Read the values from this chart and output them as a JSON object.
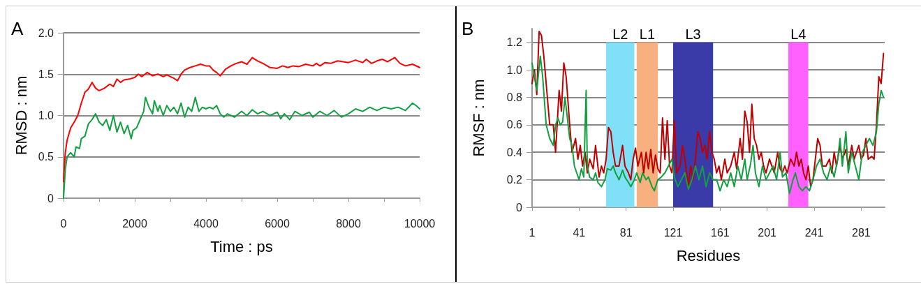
{
  "chart_data": [
    {
      "type": "line",
      "title": "A",
      "xlabel": "Time : ps",
      "ylabel": "RMSD : nm",
      "xlim": [
        0,
        10000
      ],
      "xticks": [
        0,
        {
          "value": 1000,
          "label": null
        },
        2000,
        {
          "value": 3000,
          "label": null
        },
        4000,
        {
          "value": 5000,
          "label": null
        },
        6000,
        {
          "value": 7000,
          "label": null
        },
        8000,
        {
          "value": 9000,
          "label": null
        },
        10000
      ],
      "ylim": [
        0,
        2
      ],
      "yticks": [
        0,
        {
          "value": 0.5,
          "label": "0.5"
        },
        {
          "value": 1,
          "label": "1.0"
        },
        {
          "value": 1.5,
          "label": "1.5"
        },
        {
          "value": 2,
          "label": "2.0"
        }
      ],
      "grid": "y",
      "marker": "none",
      "line_style": "solid",
      "series": [
        {
          "color": "#ff0000",
          "x": [
            0,
            50,
            100,
            200,
            300,
            400,
            500,
            600,
            700,
            800,
            900,
            1000,
            1150,
            1300,
            1400,
            1500,
            1600,
            1700,
            1850,
            2000,
            2100,
            2200,
            2350,
            2500,
            2650,
            2800,
            2900,
            3000,
            3100,
            3200,
            3300,
            3400,
            3550,
            3700,
            3850,
            4000,
            4100,
            4200,
            4300,
            4400,
            4550,
            4700,
            4850,
            5000,
            5150,
            5300,
            5450,
            5600,
            5800,
            6000,
            6150,
            6300,
            6450,
            6600,
            6800,
            7000,
            7100,
            7200,
            7350,
            7500,
            7700,
            8000,
            8200,
            8400,
            8500,
            8650,
            8800,
            8950,
            9100,
            9300,
            9450,
            9600,
            9800,
            10000
          ],
          "values": [
            0.2,
            0.55,
            0.7,
            0.85,
            0.92,
            1.0,
            1.15,
            1.28,
            1.32,
            1.4,
            1.33,
            1.3,
            1.33,
            1.38,
            1.35,
            1.44,
            1.4,
            1.43,
            1.44,
            1.46,
            1.5,
            1.47,
            1.52,
            1.48,
            1.5,
            1.47,
            1.49,
            1.47,
            1.45,
            1.42,
            1.5,
            1.55,
            1.58,
            1.6,
            1.62,
            1.6,
            1.6,
            1.55,
            1.52,
            1.48,
            1.56,
            1.6,
            1.63,
            1.65,
            1.62,
            1.7,
            1.66,
            1.63,
            1.58,
            1.57,
            1.6,
            1.58,
            1.6,
            1.59,
            1.62,
            1.6,
            1.63,
            1.6,
            1.64,
            1.63,
            1.66,
            1.64,
            1.67,
            1.64,
            1.68,
            1.63,
            1.66,
            1.68,
            1.65,
            1.7,
            1.63,
            1.6,
            1.62,
            1.58
          ]
        },
        {
          "color": "#10a040",
          "x": [
            0,
            50,
            100,
            200,
            300,
            350,
            450,
            500,
            600,
            700,
            800,
            900,
            1000,
            1100,
            1200,
            1300,
            1400,
            1500,
            1600,
            1700,
            1800,
            1900,
            1950,
            2050,
            2150,
            2250,
            2300,
            2400,
            2500,
            2550,
            2650,
            2700,
            2800,
            2900,
            3000,
            3100,
            3200,
            3300,
            3400,
            3500,
            3600,
            3700,
            3800,
            3900,
            4000,
            4100,
            4200,
            4300,
            4400,
            4500,
            4600,
            4800,
            5000,
            5150,
            5300,
            5450,
            5600,
            5800,
            6000,
            6100,
            6200,
            6350,
            6500,
            6700,
            6900,
            7000,
            7200,
            7400,
            7600,
            7800,
            8000,
            8200,
            8400,
            8600,
            8800,
            9000,
            9200,
            9400,
            9600,
            9800,
            9900,
            10000
          ],
          "values": [
            0,
            0.35,
            0.5,
            0.55,
            0.5,
            0.62,
            0.6,
            0.72,
            0.75,
            0.9,
            0.95,
            1.02,
            0.92,
            0.88,
            0.95,
            0.82,
            1.0,
            0.8,
            0.92,
            0.78,
            0.88,
            0.72,
            0.82,
            0.85,
            0.95,
            1.05,
            1.22,
            1.1,
            1.02,
            1.18,
            1.05,
            1.12,
            1.0,
            1.12,
            1.05,
            1.1,
            1.02,
            1.15,
            0.98,
            1.1,
            1.05,
            1.22,
            1.05,
            1.1,
            1.08,
            1.1,
            1.08,
            1.12,
            1.02,
            0.98,
            1.02,
            0.98,
            1.05,
            1.0,
            1.07,
            1.02,
            1.05,
            1.0,
            1.04,
            0.96,
            1.02,
            0.95,
            1.05,
            1.0,
            1.04,
            0.98,
            1.05,
            1.0,
            1.06,
            0.98,
            1.02,
            1.08,
            1.05,
            1.1,
            1.06,
            1.1,
            1.08,
            1.1,
            1.06,
            1.15,
            1.12,
            1.08
          ]
        }
      ]
    },
    {
      "type": "line",
      "title": "B",
      "xlabel": "Residues",
      "ylabel": "RMSF : nm",
      "xlim": [
        1,
        301
      ],
      "xticks": [
        1,
        41,
        81,
        121,
        161,
        201,
        241,
        281
      ],
      "ylim": [
        0,
        1.3
      ],
      "yticks": [
        0,
        0.2,
        0.4,
        0.6,
        0.8,
        {
          "value": 1,
          "label": "1.0"
        },
        1.2
      ],
      "grid": "y",
      "marker": "none",
      "line_style": "solid",
      "bands": [
        {
          "axis": "x",
          "from": 64,
          "to": 88,
          "label": "L2",
          "color": "#80e0f8"
        },
        {
          "axis": "x",
          "from": 90,
          "to": 108,
          "label": "L1",
          "color": "#f8b080"
        },
        {
          "axis": "x",
          "from": 121,
          "to": 155,
          "label": "L3",
          "color": "#3a3aa8"
        },
        {
          "axis": "x",
          "from": 219,
          "to": 236,
          "label": "L4",
          "color": "#ff60ff"
        }
      ],
      "series": [
        {
          "color": "#c00000",
          "x": [
            1,
            3,
            5,
            7,
            9,
            11,
            14,
            16,
            19,
            21,
            24,
            26,
            28,
            30,
            33,
            35,
            38,
            40,
            42,
            44,
            46,
            48,
            50,
            53,
            55,
            58,
            60,
            62,
            64,
            66,
            68,
            70,
            72,
            75,
            78,
            80,
            83,
            85,
            87,
            89,
            91,
            94,
            96,
            98,
            100,
            102,
            104,
            106,
            108,
            110,
            112,
            114,
            116,
            118,
            120,
            122,
            124,
            127,
            129,
            131,
            134,
            136,
            138,
            140,
            142,
            144,
            146,
            148,
            150,
            152,
            154,
            156,
            158,
            160,
            162,
            165,
            167,
            170,
            173,
            175,
            178,
            180,
            182,
            184,
            186,
            188,
            190,
            192,
            194,
            196,
            198,
            200,
            203,
            205,
            207,
            210,
            212,
            214,
            216,
            218,
            221,
            224,
            226,
            228,
            230,
            232,
            234,
            236,
            238,
            240,
            242,
            244,
            246,
            248,
            251,
            254,
            256,
            258,
            260,
            263,
            265,
            268,
            270,
            273,
            275,
            277,
            279,
            281,
            283,
            285,
            287,
            290,
            292,
            294,
            296,
            298,
            300
          ],
          "values": [
            0.9,
            1.0,
            0.82,
            1.28,
            1.25,
            1.1,
            0.8,
            0.6,
            0.6,
            0.4,
            0.85,
            0.7,
            1.05,
            0.95,
            0.6,
            0.4,
            0.5,
            0.35,
            0.45,
            0.3,
            0.4,
            0.25,
            0.35,
            0.28,
            0.45,
            0.22,
            0.3,
            0.25,
            0.35,
            0.58,
            0.55,
            0.4,
            0.3,
            0.3,
            0.45,
            0.3,
            0.25,
            0.2,
            0.35,
            0.43,
            0.3,
            0.4,
            0.25,
            0.4,
            0.28,
            0.42,
            0.25,
            0.38,
            0.28,
            0.25,
            0.65,
            0.35,
            0.63,
            0.3,
            0.25,
            0.63,
            0.25,
            0.3,
            0.45,
            0.35,
            0.15,
            0.3,
            0.2,
            0.35,
            0.55,
            0.5,
            0.4,
            0.45,
            0.35,
            0.55,
            0.4,
            0.35,
            0.25,
            0.3,
            0.2,
            0.35,
            0.25,
            0.3,
            0.4,
            0.28,
            0.5,
            0.35,
            0.7,
            0.62,
            0.4,
            0.75,
            0.5,
            0.45,
            0.35,
            0.4,
            0.3,
            0.25,
            0.35,
            0.3,
            0.25,
            0.4,
            0.28,
            0.25,
            0.3,
            0.25,
            0.35,
            0.3,
            0.4,
            0.3,
            0.35,
            0.25,
            0.2,
            0.3,
            0.15,
            0.2,
            0.35,
            0.5,
            0.45,
            0.3,
            0.3,
            0.35,
            0.25,
            0.4,
            0.3,
            0.45,
            0.35,
            0.42,
            0.3,
            0.45,
            0.35,
            0.4,
            0.45,
            0.35,
            0.38,
            0.5,
            0.35,
            0.37,
            0.35,
            0.6,
            0.95,
            0.9,
            1.12
          ]
        },
        {
          "color": "#10a040",
          "x": [
            1,
            3,
            5,
            8,
            10,
            13,
            16,
            19,
            21,
            23,
            25,
            27,
            29,
            31,
            33,
            35,
            37,
            39,
            41,
            43,
            45,
            47,
            48,
            50,
            53,
            55,
            57,
            60,
            63,
            65,
            68,
            70,
            72,
            75,
            78,
            80,
            83,
            85,
            88,
            90,
            93,
            95,
            98,
            100,
            103,
            105,
            108,
            111,
            114,
            117,
            120,
            122,
            125,
            128,
            131,
            134,
            137,
            140,
            143,
            146,
            149,
            152,
            155,
            158,
            161,
            164,
            167,
            170,
            173,
            176,
            179,
            182,
            184,
            187,
            189,
            191,
            194,
            197,
            200,
            203,
            206,
            209,
            212,
            214,
            217,
            220,
            223,
            225,
            228,
            231,
            234,
            237,
            240,
            243,
            246,
            249,
            252,
            255,
            258,
            261,
            263,
            265,
            268,
            270,
            273,
            276,
            279,
            282,
            285,
            288,
            291,
            294,
            296,
            298,
            300
          ],
          "values": [
            1.05,
            0.95,
            0.85,
            1.1,
            0.95,
            0.6,
            0.5,
            0.45,
            0.6,
            0.65,
            0.6,
            0.62,
            0.8,
            0.65,
            0.5,
            0.45,
            0.3,
            0.25,
            0.2,
            0.28,
            0.22,
            0.85,
            0.3,
            0.22,
            0.2,
            0.25,
            0.18,
            0.15,
            0.2,
            0.28,
            0.27,
            0.3,
            0.25,
            0.2,
            0.27,
            0.22,
            0.18,
            0.15,
            0.2,
            0.25,
            0.18,
            0.25,
            0.2,
            0.22,
            0.15,
            0.12,
            0.2,
            0.22,
            0.25,
            0.3,
            0.35,
            0.22,
            0.15,
            0.2,
            0.25,
            0.13,
            0.2,
            0.3,
            0.2,
            0.3,
            0.15,
            0.25,
            0.2,
            0.2,
            0.12,
            0.2,
            0.15,
            0.25,
            0.15,
            0.3,
            0.2,
            0.35,
            0.2,
            0.32,
            0.45,
            0.25,
            0.15,
            0.3,
            0.2,
            0.25,
            0.3,
            0.2,
            0.4,
            0.22,
            0.25,
            0.1,
            0.2,
            0.25,
            0.15,
            0.12,
            0.15,
            0.12,
            0.2,
            0.3,
            0.35,
            0.25,
            0.2,
            0.3,
            0.22,
            0.35,
            0.5,
            0.3,
            0.55,
            0.25,
            0.4,
            0.3,
            0.2,
            0.4,
            0.45,
            0.5,
            0.45,
            0.55,
            0.75,
            0.85,
            0.8
          ]
        }
      ]
    }
  ]
}
